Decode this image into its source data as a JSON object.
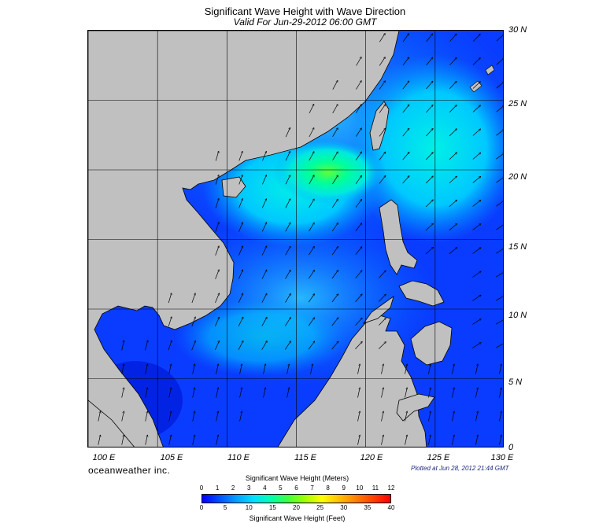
{
  "header": {
    "title": "Significant Wave Height with Wave Direction",
    "subtitle": "Valid For Jun-29-2012 06:00 GMT"
  },
  "map": {
    "extent": {
      "lon": [
        100,
        130
      ],
      "lat": [
        0,
        30
      ]
    },
    "lat_labels": [
      "30 N",
      "25 N",
      "20 N",
      "15 N",
      "10 N",
      "5 N",
      "0"
    ],
    "lon_labels": [
      "100 E",
      "105 E",
      "110 E",
      "115 E",
      "120 E",
      "125 E",
      "130 E"
    ],
    "land_color": "#c0c0c0",
    "arrow_color": "#000000",
    "grid": true
  },
  "credits": {
    "brand": "oceanweather inc.",
    "plotted": "Plotted at Jun 28, 2012 21:44 GMT"
  },
  "colorbar": {
    "title_meters": "Significant Wave Height (Meters)",
    "title_feet": "Significant Wave Height (Feet)",
    "meter_ticks": [
      "0",
      "1",
      "2",
      "3",
      "4",
      "5",
      "6",
      "7",
      "8",
      "9",
      "10",
      "11",
      "12"
    ],
    "feet_ticks": [
      "0",
      "5",
      "10",
      "15",
      "20",
      "25",
      "30",
      "35",
      "40"
    ],
    "colors": [
      "#0000ff",
      "#0050ff",
      "#00a0ff",
      "#00e0ff",
      "#00ffb0",
      "#40ff40",
      "#a0ff00",
      "#ffff00",
      "#ffc000",
      "#ff8000",
      "#ff4000",
      "#ff0000"
    ]
  }
}
